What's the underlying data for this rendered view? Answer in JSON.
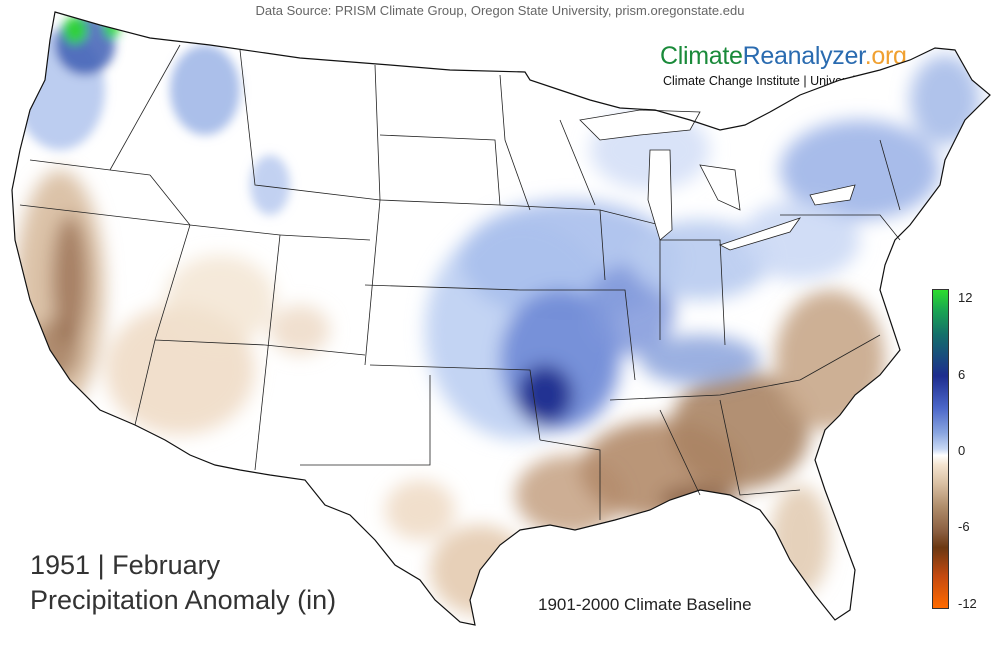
{
  "source": "Data Source: PRISM Climate Group, Oregon State University, prism.oregonstate.edu",
  "brand": {
    "part1": "Climate",
    "part2": "Reanalyzer",
    "part3": ".org"
  },
  "institute": "Climate Change Institute | University of Maine",
  "title": {
    "year_month": "1951 | February",
    "variable": "Precipitation Anomaly (in)"
  },
  "baseline": "1901-2000 Climate Baseline",
  "legend": {
    "ticks": [
      "12",
      "6",
      "0",
      "-6",
      "-12"
    ],
    "min": -12,
    "max": 12
  },
  "colors": {
    "wet": "#1e2d8e",
    "dry": "#8a5e40",
    "neutral": "#ffffff"
  }
}
